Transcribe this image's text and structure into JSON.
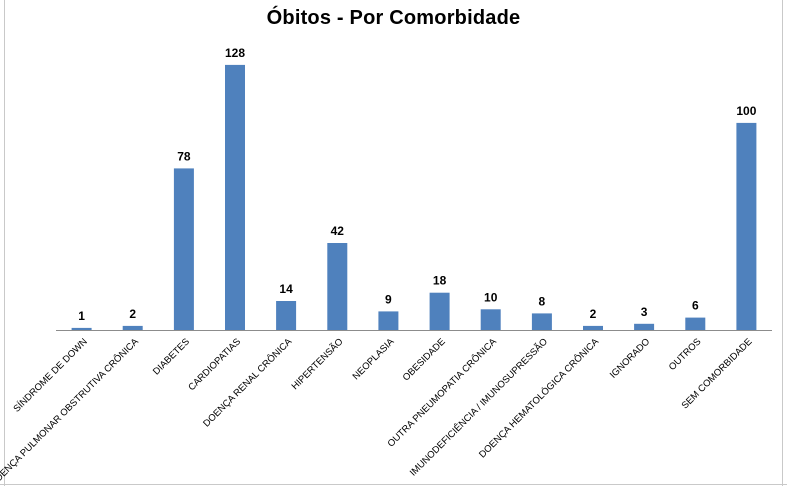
{
  "chart_data": {
    "type": "bar",
    "title": "Óbitos - Por Comorbidade",
    "xlabel": "",
    "ylabel": "",
    "categories": [
      "SÍNDROME DE DOWN",
      "DOENÇA PULMONAR OBSTRUTIVA CRÔNICA",
      "DIABETES",
      "CARDIOPATIAS",
      "DOENÇA RENAL CRÔNICA",
      "HIPERTENSÃO",
      "NEOPLASIA",
      "OBESIDADE",
      "OUTRA PNEUMOPATIA CRÔNICA",
      "IMUNODEFICIÊNCIA / IMUNOSUPRESSÃO",
      "DOENÇA HEMATOLÓGICA CRÔNICA",
      "IGNORADO",
      "OUTROS",
      "SEM COMORBIDADE"
    ],
    "values": [
      1,
      2,
      78,
      128,
      14,
      42,
      9,
      18,
      10,
      8,
      2,
      3,
      6,
      100
    ],
    "ylim": [
      0,
      140
    ],
    "grid": false,
    "legend": "none",
    "data_labels": true,
    "bar_color": "#4f81bd"
  }
}
